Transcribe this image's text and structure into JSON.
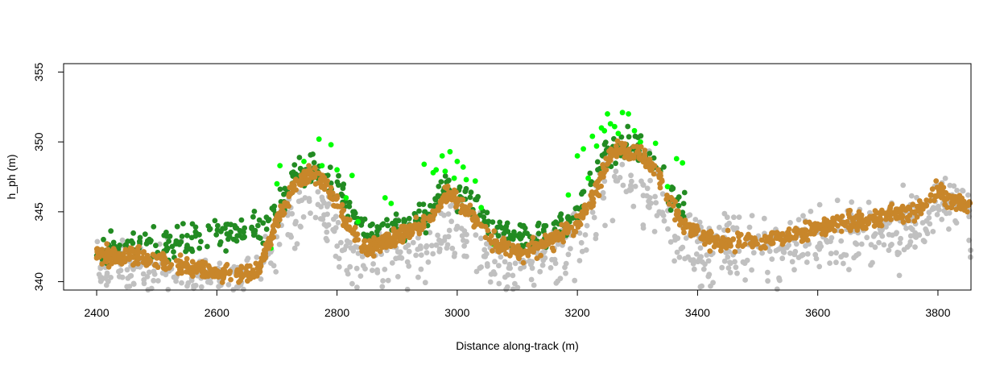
{
  "chart_data": {
    "type": "scatter",
    "title": "",
    "xlabel": "Distance along-track (m)",
    "ylabel": "h_ph (m)",
    "xlim": [
      2345,
      3855
    ],
    "ylim": [
      339.4,
      355.6
    ],
    "x_ticks": [
      2400,
      2600,
      2800,
      3000,
      3200,
      3400,
      3600,
      3800
    ],
    "y_ticks": [
      340,
      345,
      350,
      355
    ],
    "grid": false,
    "legend": "none",
    "series": [
      {
        "color": "#c0c0c0",
        "role": "noise/background photons",
        "profile_x": [
          2400,
          2550,
          2600,
          2670,
          2700,
          2760,
          2800,
          2840,
          2900,
          2950,
          2990,
          3050,
          3100,
          3150,
          3200,
          3240,
          3280,
          3320,
          3360,
          3400,
          3450,
          3500,
          3560,
          3600,
          3700,
          3780,
          3800,
          3855
        ],
        "profile_y": [
          341.5,
          340.5,
          340.0,
          340.2,
          344.0,
          346.5,
          344.5,
          341.5,
          342.5,
          343.5,
          345.0,
          342.5,
          341.5,
          342.0,
          343.5,
          347.0,
          348.3,
          347.0,
          344.0,
          342.8,
          342.6,
          342.8,
          343.2,
          343.8,
          344.3,
          345.0,
          346.5,
          345.5
        ],
        "spread": 1.6
      },
      {
        "color": "#228b22",
        "role": "canopy photons",
        "profile_x": [
          2400,
          2440,
          2690,
          2720,
          2760,
          2800,
          2840,
          2860,
          2900,
          2950,
          2980,
          3010,
          3050,
          3100,
          3140,
          3200,
          3240,
          3280,
          3320,
          3350,
          3380
        ],
        "profile_y": [
          342.3,
          342.3,
          344.0,
          346.8,
          348.3,
          347.0,
          344.0,
          343.3,
          343.8,
          344.8,
          346.8,
          346.3,
          344.0,
          343.0,
          343.3,
          344.8,
          348.8,
          349.8,
          349.3,
          346.3,
          345.3
        ],
        "spread": 0.55
      },
      {
        "color": "#00ff00",
        "role": "top of canopy photons",
        "points_x": [
          2690,
          2695,
          2700,
          2705,
          2712,
          2745,
          2770,
          2775,
          2790,
          2800,
          2815,
          2825,
          2835,
          2880,
          2890,
          2945,
          2960,
          2965,
          2975,
          2980,
          2988,
          2995,
          3000,
          3010,
          3015,
          3030,
          3040,
          3060,
          3185,
          3200,
          3210,
          3218,
          3225,
          3232,
          3240,
          3245,
          3250,
          3255,
          3262,
          3268,
          3275,
          3285,
          3295,
          3305,
          3330,
          3350,
          3365,
          3375
        ],
        "points_y": [
          342.4,
          343.6,
          347.0,
          348.3,
          345.5,
          348.6,
          350.2,
          348.3,
          349.8,
          348.0,
          346.0,
          347.6,
          344.3,
          346.0,
          345.6,
          348.4,
          347.8,
          348.0,
          349.0,
          347.9,
          349.3,
          347.4,
          348.6,
          348.2,
          347.3,
          347.2,
          345.3,
          342.7,
          346.2,
          349.0,
          349.5,
          347.4,
          350.4,
          349.7,
          351.0,
          350.8,
          352.0,
          351.3,
          351.1,
          350.6,
          352.1,
          352.0,
          350.8,
          350.0,
          349.9,
          346.8,
          348.8,
          348.5
        ]
      },
      {
        "color": "#c8862a",
        "role": "ground photons",
        "profile_x": [
          2400,
          2450,
          2500,
          2550,
          2600,
          2650,
          2670,
          2700,
          2730,
          2760,
          2790,
          2820,
          2840,
          2860,
          2900,
          2950,
          2970,
          2985,
          3000,
          3030,
          3060,
          3100,
          3130,
          3150,
          3200,
          3230,
          3250,
          3270,
          3290,
          3310,
          3330,
          3350,
          3370,
          3400,
          3440,
          3500,
          3560,
          3600,
          3650,
          3700,
          3760,
          3785,
          3800,
          3815,
          3830,
          3855
        ],
        "profile_y": [
          341.9,
          341.8,
          341.5,
          341.0,
          340.6,
          340.5,
          340.9,
          344.3,
          347.0,
          347.8,
          346.3,
          344.0,
          342.6,
          342.5,
          343.2,
          344.2,
          345.6,
          346.3,
          345.9,
          344.5,
          342.9,
          342.0,
          342.4,
          342.8,
          344.0,
          346.3,
          348.8,
          349.6,
          349.0,
          349.0,
          348.0,
          346.5,
          344.5,
          343.4,
          342.8,
          343.0,
          343.3,
          343.8,
          344.3,
          344.5,
          345.0,
          345.8,
          346.6,
          346.0,
          345.6,
          345.4
        ],
        "spread": 0.32
      }
    ]
  }
}
